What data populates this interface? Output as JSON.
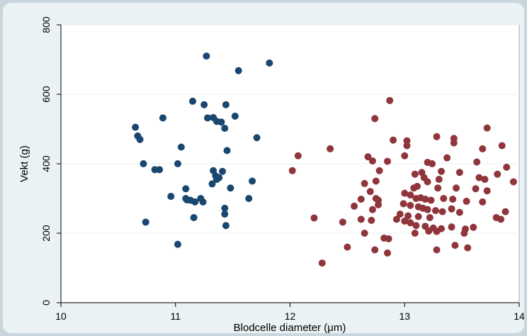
{
  "chart_data": {
    "type": "scatter",
    "title": "",
    "xlabel": "Blodcelle diameter (μm)",
    "ylabel": "Vekt (g)",
    "xlim": [
      10,
      14
    ],
    "ylim": [
      0,
      800
    ],
    "xticks": [
      10,
      11,
      12,
      13,
      14
    ],
    "yticks": [
      0,
      200,
      400,
      600,
      800
    ],
    "grid": "horizontal",
    "legend": "none",
    "colors": {
      "series_1": "#1a476f",
      "series_2": "#90353b",
      "plot_bg": "#ffffff",
      "outer_bg": "#eaf2f3",
      "grid": "#eaf2f3"
    },
    "series": [
      {
        "color": "#1a476f",
        "points": [
          [
            11.27,
            710
          ],
          [
            11.55,
            668
          ],
          [
            11.82,
            690
          ],
          [
            11.15,
            580
          ],
          [
            11.25,
            570
          ],
          [
            11.44,
            570
          ],
          [
            11.28,
            532
          ],
          [
            11.33,
            533
          ],
          [
            11.36,
            522
          ],
          [
            11.4,
            520
          ],
          [
            11.52,
            537
          ],
          [
            10.89,
            532
          ],
          [
            11.43,
            502
          ],
          [
            10.65,
            505
          ],
          [
            10.67,
            480
          ],
          [
            10.69,
            470
          ],
          [
            11.71,
            475
          ],
          [
            11.05,
            448
          ],
          [
            11.45,
            438
          ],
          [
            10.72,
            400
          ],
          [
            11.02,
            400
          ],
          [
            10.82,
            383
          ],
          [
            10.86,
            383
          ],
          [
            11.33,
            380
          ],
          [
            11.41,
            378
          ],
          [
            11.35,
            365
          ],
          [
            11.38,
            360
          ],
          [
            11.36,
            355
          ],
          [
            11.32,
            342
          ],
          [
            11.67,
            350
          ],
          [
            11.09,
            328
          ],
          [
            11.48,
            330
          ],
          [
            10.96,
            306
          ],
          [
            11.09,
            300
          ],
          [
            11.1,
            296
          ],
          [
            11.13,
            295
          ],
          [
            11.17,
            290
          ],
          [
            11.22,
            300
          ],
          [
            11.24,
            290
          ],
          [
            11.64,
            300
          ],
          [
            11.43,
            272
          ],
          [
            11.43,
            255
          ],
          [
            10.74,
            232
          ],
          [
            11.16,
            245
          ],
          [
            11.44,
            222
          ],
          [
            11.02,
            168
          ]
        ]
      },
      {
        "color": "#90353b",
        "points": [
          [
            12.87,
            582
          ],
          [
            12.74,
            530
          ],
          [
            13.72,
            503
          ],
          [
            13.28,
            478
          ],
          [
            13.43,
            473
          ],
          [
            13.43,
            460
          ],
          [
            12.9,
            468
          ],
          [
            13.02,
            466
          ],
          [
            12.35,
            443
          ],
          [
            13.68,
            443
          ],
          [
            13.85,
            452
          ],
          [
            13.02,
            452
          ],
          [
            12.07,
            423
          ],
          [
            12.68,
            420
          ],
          [
            13.0,
            423
          ],
          [
            13.37,
            417
          ],
          [
            12.72,
            408
          ],
          [
            12.85,
            407
          ],
          [
            13.2,
            404
          ],
          [
            13.24,
            400
          ],
          [
            13.63,
            405
          ],
          [
            13.89,
            390
          ],
          [
            12.02,
            380
          ],
          [
            12.78,
            380
          ],
          [
            13.09,
            370
          ],
          [
            13.15,
            375
          ],
          [
            13.32,
            378
          ],
          [
            13.48,
            375
          ],
          [
            13.81,
            370
          ],
          [
            13.65,
            360
          ],
          [
            13.7,
            355
          ],
          [
            13.95,
            348
          ],
          [
            13.17,
            360
          ],
          [
            13.3,
            355
          ],
          [
            13.2,
            348
          ],
          [
            12.75,
            350
          ],
          [
            12.65,
            343
          ],
          [
            13.11,
            335
          ],
          [
            13.08,
            330
          ],
          [
            13.29,
            330
          ],
          [
            13.45,
            330
          ],
          [
            13.62,
            328
          ],
          [
            13.72,
            322
          ],
          [
            12.7,
            320
          ],
          [
            13.0,
            315
          ],
          [
            13.05,
            310
          ],
          [
            12.75,
            300
          ],
          [
            12.77,
            295
          ],
          [
            12.62,
            298
          ],
          [
            13.1,
            300
          ],
          [
            13.14,
            302
          ],
          [
            13.18,
            298
          ],
          [
            13.23,
            295
          ],
          [
            13.34,
            300
          ],
          [
            13.42,
            298
          ],
          [
            13.54,
            292
          ],
          [
            13.68,
            290
          ],
          [
            12.56,
            278
          ],
          [
            12.77,
            282
          ],
          [
            12.99,
            285
          ],
          [
            13.05,
            280
          ],
          [
            13.12,
            276
          ],
          [
            13.16,
            272
          ],
          [
            13.2,
            268
          ],
          [
            13.27,
            265
          ],
          [
            13.33,
            262
          ],
          [
            13.41,
            270
          ],
          [
            13.48,
            260
          ],
          [
            13.88,
            262
          ],
          [
            12.72,
            268
          ],
          [
            12.96,
            255
          ],
          [
            13.03,
            250
          ],
          [
            13.12,
            248
          ],
          [
            13.22,
            245
          ],
          [
            12.62,
            240
          ],
          [
            12.71,
            237
          ],
          [
            12.93,
            240
          ],
          [
            13.0,
            235
          ],
          [
            13.05,
            230
          ],
          [
            13.1,
            222
          ],
          [
            13.18,
            220
          ],
          [
            13.25,
            215
          ],
          [
            13.32,
            213
          ],
          [
            13.41,
            218
          ],
          [
            13.53,
            212
          ],
          [
            13.6,
            217
          ],
          [
            13.8,
            245
          ],
          [
            13.84,
            240
          ],
          [
            12.21,
            244
          ],
          [
            12.46,
            232
          ],
          [
            13.09,
            200
          ],
          [
            13.21,
            206
          ],
          [
            13.28,
            205
          ],
          [
            13.52,
            200
          ],
          [
            12.65,
            200
          ],
          [
            12.82,
            186
          ],
          [
            12.86,
            184
          ],
          [
            12.74,
            152
          ],
          [
            13.28,
            152
          ],
          [
            13.44,
            165
          ],
          [
            13.55,
            158
          ],
          [
            12.5,
            160
          ],
          [
            12.85,
            143
          ],
          [
            12.28,
            114
          ]
        ]
      }
    ]
  }
}
